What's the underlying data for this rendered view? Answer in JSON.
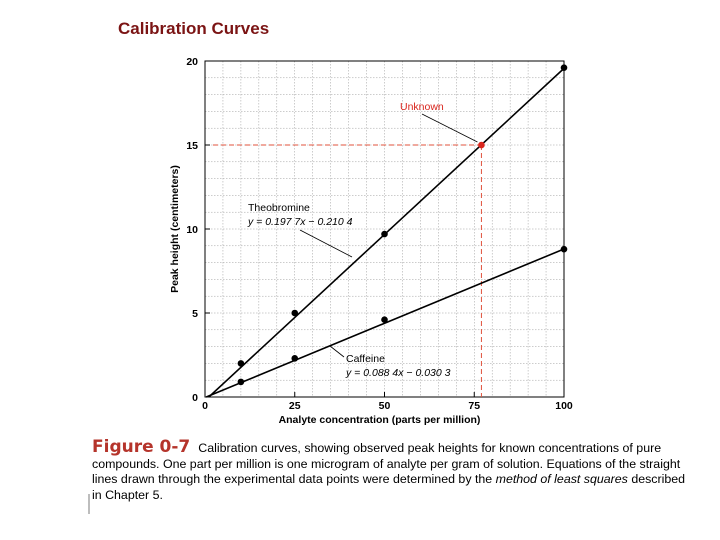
{
  "slide": {
    "title": "Calibration Curves"
  },
  "chart_data": {
    "type": "scatter",
    "xlabel": "Analyte concentration (parts per million)",
    "ylabel": "Peak height (centimeters)",
    "xlim": [
      0,
      100
    ],
    "ylim": [
      0,
      20
    ],
    "x_ticks": [
      0,
      25,
      50,
      75,
      100
    ],
    "y_ticks": [
      0,
      5,
      10,
      15,
      20
    ],
    "x_tick_labels": [
      "0",
      "25",
      "50",
      "75",
      "100"
    ],
    "y_tick_labels": [
      "0",
      "5",
      "10",
      "15",
      "20"
    ],
    "grid": true,
    "series": [
      {
        "name": "Theobromine",
        "equation": "y = 0.197 7x − 0.210 4",
        "slope": 0.1977,
        "intercept": -0.2104,
        "x": [
          10,
          25,
          50,
          100
        ],
        "y": [
          2.0,
          5.0,
          9.7,
          19.6
        ]
      },
      {
        "name": "Caffeine",
        "equation": "y = 0.088 4x − 0.030 3",
        "slope": 0.0884,
        "intercept": -0.0303,
        "x": [
          10,
          25,
          50,
          100
        ],
        "y": [
          0.9,
          2.3,
          4.6,
          8.8
        ]
      }
    ],
    "unknown": {
      "label": "Unknown",
      "x": 77,
      "y": 15,
      "color": "#d9251d"
    },
    "colors": {
      "line": "#000000",
      "grid": "#9a9a9a",
      "unknown_guide": "#e0533d"
    }
  },
  "caption": {
    "figure_label": "Figure 0-7",
    "text_1": "Calibration curves, showing observed peak heights for known concentrations of pure compounds. One part per million is one microgram of analyte per gram of solution. Equations of the straight lines drawn through the experimental data points were determined by the ",
    "emphasis": "method of least squares",
    "text_2": " described in Chapter 5."
  }
}
